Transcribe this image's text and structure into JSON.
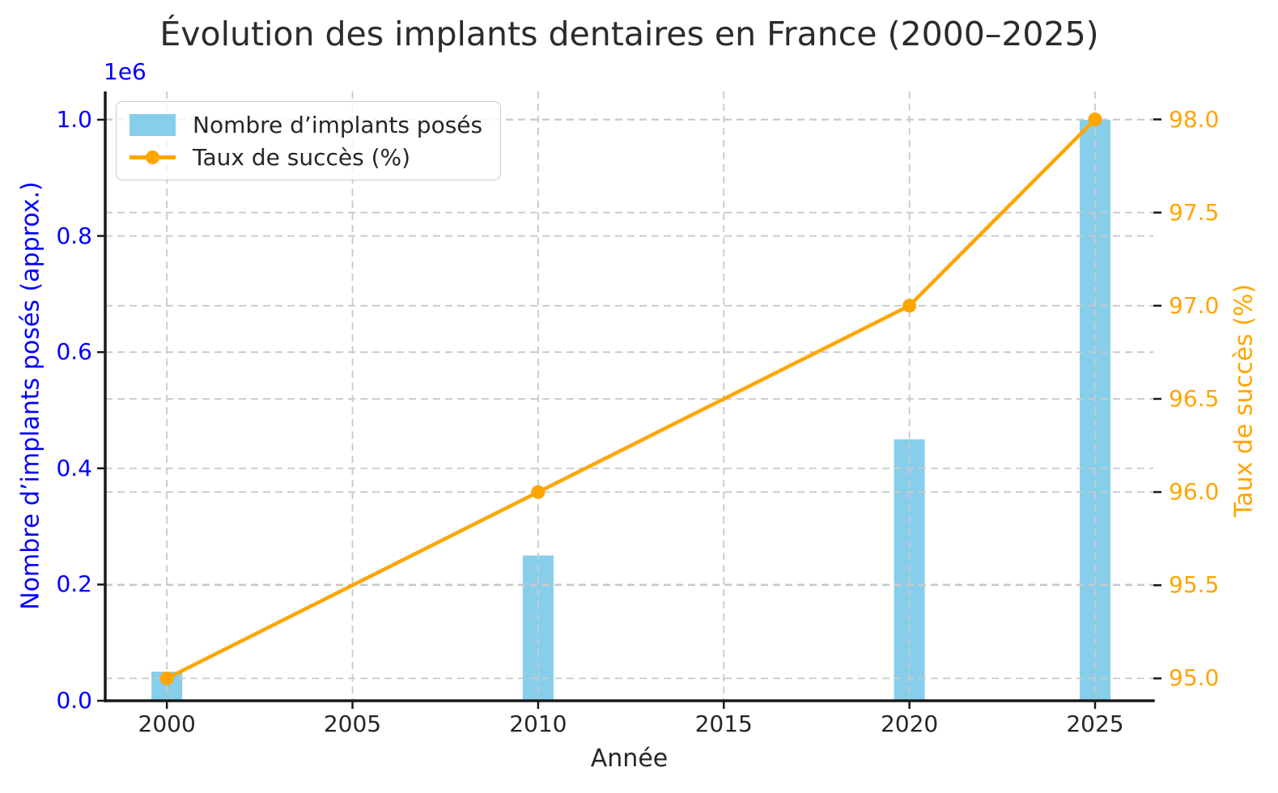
{
  "chart_data": {
    "type": "bar+line",
    "title": "Évolution des implants dentaires en France (2000–2025)",
    "xlabel": "Année",
    "x": [
      2000,
      2010,
      2020,
      2025
    ],
    "series": [
      {
        "name": "Nombre d’implants posés",
        "type": "bar",
        "axis": "left",
        "color": "#87CEEB",
        "values": [
          50000,
          250000,
          450000,
          1000000
        ]
      },
      {
        "name": "Taux de succès (%)",
        "type": "line",
        "axis": "right",
        "color": "#FFA500",
        "marker": "circle",
        "values": [
          95.0,
          96.0,
          97.0,
          98.0
        ]
      }
    ],
    "x_axis": {
      "ticks": [
        "2000",
        "2005",
        "2010",
        "2015",
        "2020",
        "2025"
      ],
      "tick_values": [
        2000,
        2005,
        2010,
        2015,
        2020,
        2025
      ],
      "lim": [
        1998.34,
        2026.57
      ],
      "color": "#262626"
    },
    "left_axis": {
      "label": "Nombre d’implants posés (approx.)",
      "offset_text": "1e6",
      "ticks": [
        "0.0",
        "0.2",
        "0.4",
        "0.6",
        "0.8",
        "1.0"
      ],
      "tick_values": [
        0,
        200000,
        400000,
        600000,
        800000,
        1000000
      ],
      "lim": [
        0,
        1048700
      ],
      "color": "#0000FF"
    },
    "right_axis": {
      "label": "Taux de succès (%)",
      "ticks": [
        "95.0",
        "95.5",
        "96.0",
        "96.5",
        "97.0",
        "97.5",
        "98.0"
      ],
      "tick_values": [
        95.0,
        95.5,
        96.0,
        96.5,
        97.0,
        97.5,
        98.0
      ],
      "lim": [
        94.88,
        98.15
      ],
      "color": "#FFA500"
    },
    "grid": {
      "on": true,
      "style": "dashed",
      "color": "#C9C9C9",
      "drawn_above_bars": true
    },
    "legend": {
      "position": "upper left",
      "entries": [
        "Nombre d’implants posés",
        "Taux de succès (%)"
      ]
    },
    "spine_color": "#1A1A1A",
    "title_color": "#2B2B2B"
  }
}
